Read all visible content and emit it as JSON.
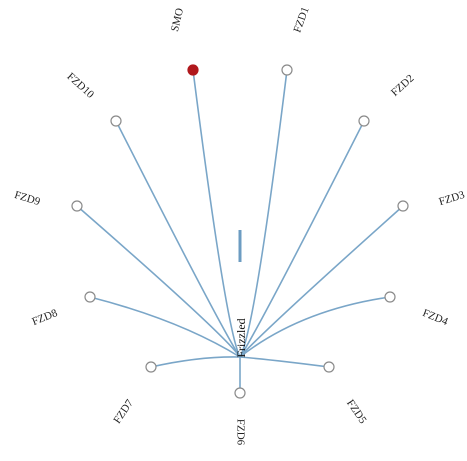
{
  "diagram": {
    "root_label": "Frizzled",
    "highlight_color": "#b0181c",
    "link_color": "#7aa6c8",
    "leaves": [
      {
        "name": "SMO",
        "highlight": true
      },
      {
        "name": "FZD1",
        "highlight": false
      },
      {
        "name": "FZD2",
        "highlight": false
      },
      {
        "name": "FZD3",
        "highlight": false
      },
      {
        "name": "FZD4",
        "highlight": false
      },
      {
        "name": "FZD5",
        "highlight": false
      },
      {
        "name": "FZD6",
        "highlight": false
      },
      {
        "name": "FZD7",
        "highlight": false
      },
      {
        "name": "FZD8",
        "highlight": false
      },
      {
        "name": "FZD9",
        "highlight": false
      },
      {
        "name": "FZD10",
        "highlight": false
      }
    ]
  }
}
